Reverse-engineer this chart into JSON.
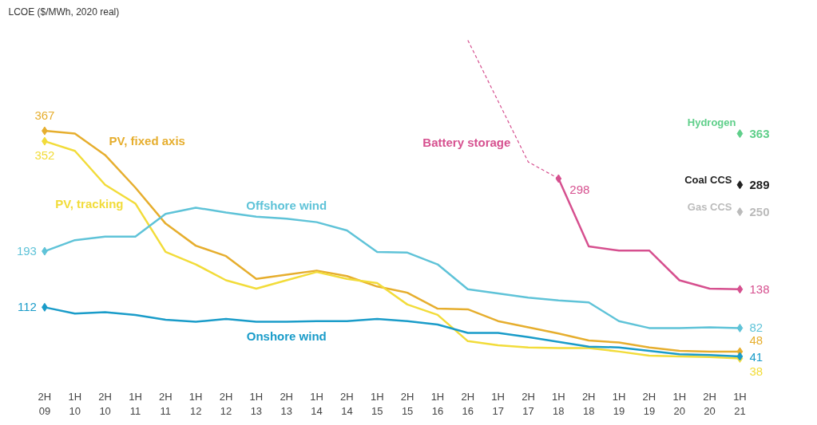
{
  "chart_data": {
    "type": "line",
    "ylabel": "LCOE ($/MWh, 2020 real)",
    "categories": [
      "2H 09",
      "1H 10",
      "2H 10",
      "1H 11",
      "2H 11",
      "1H 12",
      "2H 12",
      "1H 13",
      "2H 13",
      "1H 14",
      "2H 14",
      "1H 15",
      "2H 15",
      "1H 16",
      "2H 16",
      "1H 17",
      "2H 17",
      "1H 18",
      "2H 18",
      "1H 19",
      "2H 19",
      "1H 20",
      "2H 20",
      "1H 21"
    ],
    "line_style": "solid",
    "series": [
      {
        "name": "PV, fixed axis",
        "color": "#e6ae2e",
        "values": [
          367,
          363,
          332,
          285,
          233,
          201,
          186,
          153,
          159,
          165,
          157,
          142,
          133,
          110,
          109,
          92,
          83,
          74,
          64,
          61,
          54,
          49,
          48,
          48
        ],
        "value_labels": [
          "367",
          null,
          null,
          null,
          null,
          null,
          null,
          null,
          null,
          null,
          null,
          null,
          null,
          null,
          null,
          null,
          null,
          null,
          null,
          null,
          null,
          null,
          null,
          "48"
        ]
      },
      {
        "name": "PV, tracking",
        "color": "#f2dc3a",
        "values": [
          352,
          338,
          289,
          262,
          192,
          174,
          151,
          139,
          151,
          163,
          153,
          147,
          116,
          101,
          63,
          57,
          54,
          53,
          53,
          48,
          42,
          41,
          40,
          38
        ],
        "value_labels": [
          "352",
          null,
          null,
          null,
          null,
          null,
          null,
          null,
          null,
          null,
          null,
          null,
          null,
          null,
          null,
          null,
          null,
          null,
          null,
          null,
          null,
          null,
          null,
          "38"
        ]
      },
      {
        "name": "Offshore wind",
        "color": "#5fc3d8",
        "values": [
          193,
          209,
          214,
          214,
          247,
          256,
          249,
          243,
          240,
          235,
          223,
          192,
          191,
          174,
          138,
          132,
          126,
          122,
          119,
          92,
          82,
          82,
          83,
          82
        ],
        "value_labels": [
          "193",
          null,
          null,
          null,
          null,
          null,
          null,
          null,
          null,
          null,
          null,
          null,
          null,
          null,
          null,
          null,
          null,
          null,
          null,
          null,
          null,
          null,
          null,
          "82"
        ]
      },
      {
        "name": "Onshore wind",
        "color": "#1a9cc9",
        "values": [
          112,
          103,
          105,
          101,
          94,
          91,
          95,
          91,
          91,
          92,
          92,
          95,
          92,
          87,
          75,
          75,
          69,
          62,
          55,
          54,
          49,
          44,
          43,
          41
        ],
        "value_labels": [
          "112",
          null,
          null,
          null,
          null,
          null,
          null,
          null,
          null,
          null,
          null,
          null,
          null,
          null,
          null,
          null,
          null,
          null,
          null,
          null,
          null,
          null,
          null,
          "41"
        ]
      },
      {
        "name": "Battery storage",
        "color": "#d6508f",
        "values": [
          null,
          null,
          null,
          null,
          null,
          null,
          null,
          null,
          null,
          null,
          null,
          null,
          null,
          null,
          null,
          null,
          null,
          298,
          200,
          194,
          194,
          151,
          139,
          138
        ],
        "value_labels": [
          null,
          null,
          null,
          null,
          null,
          null,
          null,
          null,
          null,
          null,
          null,
          null,
          null,
          null,
          null,
          null,
          null,
          "298",
          null,
          null,
          null,
          null,
          null,
          "138"
        ]
      },
      {
        "color": "#d6508f",
        "line_style": "dashed",
        "values": [
          null,
          null,
          null,
          null,
          null,
          null,
          null,
          null,
          null,
          null,
          null,
          null,
          null,
          null,
          498,
          410,
          322,
          298,
          null,
          null,
          null,
          null,
          null,
          null
        ]
      },
      {
        "name": "Hydrogen",
        "type": "scatter",
        "marker": "diamond",
        "color": "#5fcf8a",
        "values": [
          null,
          null,
          null,
          null,
          null,
          null,
          null,
          null,
          null,
          null,
          null,
          null,
          null,
          null,
          null,
          null,
          null,
          null,
          null,
          null,
          null,
          null,
          null,
          363
        ],
        "value_labels": [
          null,
          null,
          null,
          null,
          null,
          null,
          null,
          null,
          null,
          null,
          null,
          null,
          null,
          null,
          null,
          null,
          null,
          null,
          null,
          null,
          null,
          null,
          null,
          "363"
        ]
      },
      {
        "name": "Coal CCS",
        "type": "scatter",
        "marker": "diamond",
        "color": "#222222",
        "values": [
          null,
          null,
          null,
          null,
          null,
          null,
          null,
          null,
          null,
          null,
          null,
          null,
          null,
          null,
          null,
          null,
          null,
          null,
          null,
          null,
          null,
          null,
          null,
          289
        ],
        "value_labels": [
          null,
          null,
          null,
          null,
          null,
          null,
          null,
          null,
          null,
          null,
          null,
          null,
          null,
          null,
          null,
          null,
          null,
          null,
          null,
          null,
          null,
          null,
          null,
          "289"
        ]
      },
      {
        "name": "Gas CCS",
        "type": "scatter",
        "marker": "diamond",
        "color": "#bbbbbb",
        "values": [
          null,
          null,
          null,
          null,
          null,
          null,
          null,
          null,
          null,
          null,
          null,
          null,
          null,
          null,
          null,
          null,
          null,
          null,
          null,
          null,
          null,
          null,
          null,
          250
        ],
        "value_labels": [
          null,
          null,
          null,
          null,
          null,
          null,
          null,
          null,
          null,
          null,
          null,
          null,
          null,
          null,
          null,
          null,
          null,
          null,
          null,
          null,
          null,
          null,
          null,
          "250"
        ]
      }
    ]
  }
}
